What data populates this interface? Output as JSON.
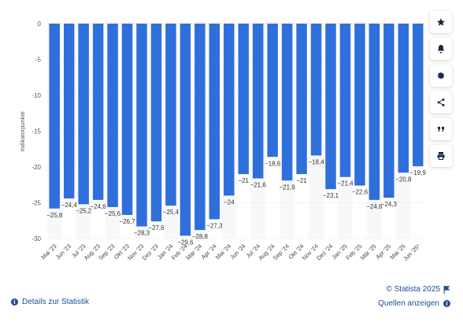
{
  "chart_data": {
    "type": "bar",
    "ylabel": "Indikatorpunkte",
    "ylim": [
      -30,
      0
    ],
    "yticks": [
      "0",
      "-5",
      "-10",
      "-15",
      "-20",
      "-25",
      "-30"
    ],
    "categories": [
      "Mai '23",
      "Jun '23",
      "Jul '23",
      "Aug '23",
      "Sep '23",
      "Okt '23",
      "Nov '23",
      "Dez '23",
      "Jan '24",
      "Feb '24",
      "Mär '24",
      "Apr '24",
      "Mai '24",
      "Jun '24",
      "Jul '24",
      "Aug '24",
      "Sep '24",
      "Okt '24",
      "Nov '24",
      "Dez '24",
      "Jan '25",
      "Feb '25",
      "Mär '25",
      "Apr '25",
      "Mai '25",
      "Jun '25¹"
    ],
    "values": [
      -25.8,
      -24.4,
      -25.2,
      -24.6,
      -25.6,
      -26.7,
      -28.3,
      -27.6,
      -25.4,
      -29.6,
      -28.8,
      -27.3,
      -24,
      -21,
      -21.6,
      -18.6,
      -21.9,
      -21,
      -18.4,
      -23.1,
      -21.4,
      -22.6,
      -24.6,
      -24.3,
      -20.8,
      -19.9
    ],
    "data_labels": [
      "−25,8",
      "−24,4",
      "−25,2",
      "−24,6",
      "−25,6",
      "−26,7",
      "−28,3",
      "−27,6",
      "−25,4",
      "−29,6",
      "−28,8",
      "−27,3",
      "−24",
      "−21",
      "−21,6",
      "−18,6",
      "−21,9",
      "−21",
      "−18,4",
      "−23,1",
      "−21,4",
      "−22,6",
      "−24,6",
      "−24,3",
      "−20,8",
      "−19,9"
    ],
    "bar_color": "#2f6fdc",
    "grid": true
  },
  "sidebar": {
    "icons": [
      "star-icon",
      "bell-icon",
      "gear-icon",
      "share-icon",
      "quote-icon",
      "print-icon"
    ]
  },
  "footer": {
    "details_label": "Details zur Statistik",
    "copyright": "© Statista 2025",
    "sources_label": "Quellen anzeigen"
  }
}
